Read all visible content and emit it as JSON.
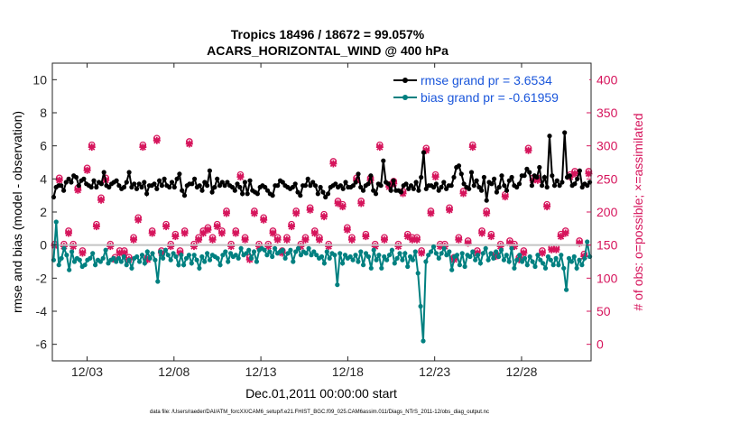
{
  "chart_data": {
    "type": "line",
    "title_line1": "Tropics 18496 / 18672 = 99.057%",
    "title_line2": "ACARS_HORIZONTAL_WIND @ 400 hPa",
    "xlabel": "Dec.01,2011 00:00:00 start",
    "ylabel_left": "rmse and bias (model - observation)",
    "ylabel_right": "# of obs: o=possible; ×=assimilated",
    "footnote": "data file: /Users/raeder/DAI/ATM_forcXX/CAM6_setup/f.e21.FHIST_BGC.f09_025.CAM6assim.011/Diags_NTrS_2011-12/obs_diag_output.nc",
    "xlim": [
      1,
      32
    ],
    "ylim_left": [
      -7,
      11
    ],
    "ylim_right": [
      -25,
      425
    ],
    "x_ticks": [
      3,
      8,
      13,
      18,
      23,
      28
    ],
    "x_tick_labels": [
      "12/03",
      "12/08",
      "12/13",
      "12/18",
      "12/23",
      "12/28"
    ],
    "y_left_ticks": [
      "-6",
      "-4",
      "-2",
      "0",
      "2",
      "4",
      "6",
      "8",
      "10"
    ],
    "y_right_ticks": [
      "0",
      "50",
      "100",
      "150",
      "200",
      "250",
      "300",
      "350",
      "400"
    ],
    "zero_line": 0,
    "series": [
      {
        "name": "rmse grand pr = 3.6534",
        "color": "#000000",
        "values": [
          2.9,
          3.5,
          3.6,
          3.6,
          3.3,
          3.8,
          4.0,
          3.8,
          4.2,
          4.1,
          3.6,
          3.9,
          4.0,
          3.7,
          3.6,
          3.5,
          3.9,
          3.5,
          3.8,
          3.7,
          4.4,
          3.6,
          3.5,
          3.7,
          3.8,
          3.9,
          3.6,
          3.4,
          3.5,
          3.8,
          4.4,
          3.5,
          3.7,
          3.4,
          3.7,
          3.5,
          3.8,
          3.1,
          3.6,
          3.6,
          3.7,
          3.4,
          3.9,
          3.6,
          4.0,
          3.6,
          3.5,
          3.8,
          3.5,
          4.0,
          4.3,
          3.3,
          3.0,
          3.6,
          3.7,
          3.7,
          4.0,
          3.5,
          3.6,
          3.3,
          3.8,
          3.6,
          4.5,
          3.2,
          3.5,
          4.0,
          3.6,
          3.8,
          3.6,
          3.8,
          3.6,
          3.5,
          3.3,
          3.7,
          3.5,
          3.1,
          3.8,
          3.1,
          3.9,
          3.3,
          3.2,
          3.1,
          3.5,
          3.6,
          3.5,
          3.3,
          3.1,
          3.0,
          3.6,
          3.6,
          3.9,
          3.8,
          3.6,
          3.5,
          3.4,
          3.5,
          3.7,
          3.2,
          3.0,
          3.6,
          3.6,
          4.0,
          3.6,
          3.8,
          3.6,
          3.1,
          3.5,
          3.2,
          2.9,
          3.1,
          3.5,
          3.6,
          3.7,
          3.5,
          3.6,
          3.4,
          3.8,
          3.5,
          3.5,
          3.6,
          3.8,
          4.3,
          3.5,
          3.3,
          3.6,
          3.7,
          4.2,
          3.3,
          3.1,
          3.7,
          3.6,
          5.1,
          3.8,
          3.7,
          3.3,
          3.9,
          3.3,
          3.3,
          3.2,
          3.6,
          3.7,
          3.4,
          3.6,
          3.4,
          3.8,
          3.3,
          4.1,
          5.6,
          3.4,
          3.6,
          3.6,
          3.5,
          3.7,
          3.3,
          3.5,
          3.8,
          3.4,
          3.6,
          3.6,
          4.1,
          4.7,
          4.8,
          4.3,
          3.7,
          3.5,
          3.4,
          4.4,
          3.6,
          3.9,
          3.5,
          3.3,
          4.1,
          2.7,
          3.8,
          3.7,
          4.0,
          3.2,
          3.5,
          4.2,
          3.6,
          3.3,
          3.9,
          4.1,
          3.6,
          3.5,
          3.7,
          4.2,
          4.2,
          4.6,
          4.4,
          3.6,
          4.2,
          4.1,
          4.7,
          3.6,
          4.1,
          3.5,
          6.6,
          4.2,
          3.6,
          3.9,
          3.6,
          3.8,
          6.8,
          4.1,
          4.2,
          3.6,
          3.7,
          4.0,
          4.5,
          3.5,
          3.7,
          3.6,
          3.8
        ]
      },
      {
        "name": "bias grand pr = -0.61959",
        "color": "#008080",
        "values": [
          -0.9,
          1.4,
          -1.2,
          -0.8,
          -0.2,
          -0.6,
          -1.5,
          -0.4,
          -1.0,
          -0.8,
          -0.9,
          -1.3,
          -1.2,
          -0.9,
          -0.8,
          -0.5,
          -1.2,
          -0.9,
          -1.0,
          -0.8,
          -0.3,
          -1.1,
          -0.9,
          -0.8,
          -1.0,
          -0.8,
          -1.0,
          -0.7,
          -1.2,
          -0.9,
          -1.4,
          -0.8,
          -0.7,
          -1.0,
          -0.6,
          -1.1,
          -0.4,
          -0.8,
          -0.5,
          -0.9,
          -2.2,
          -0.4,
          -0.8,
          -0.3,
          -0.6,
          -0.9,
          -0.5,
          -0.7,
          -1.2,
          -0.6,
          -1.2,
          -0.8,
          -0.6,
          -1.1,
          -0.6,
          -0.9,
          -1.4,
          -0.7,
          -1.0,
          -0.5,
          -0.9,
          -0.6,
          -0.7,
          -0.8,
          -1.2,
          -0.6,
          -0.4,
          -1.0,
          -0.5,
          -0.7,
          -0.6,
          -0.8,
          -0.2,
          -0.6,
          -0.5,
          -0.3,
          -0.8,
          -0.4,
          -1.0,
          -0.3,
          -0.2,
          -0.3,
          -0.6,
          -0.4,
          -0.7,
          -0.2,
          -0.5,
          -0.4,
          -0.3,
          -0.8,
          -0.5,
          -0.3,
          -1.0,
          -0.4,
          -0.2,
          -0.6,
          -0.4,
          -0.5,
          -0.2,
          -0.6,
          -0.4,
          -0.6,
          -0.8,
          -0.7,
          -1.1,
          -0.4,
          -0.8,
          -0.5,
          -0.6,
          -2.4,
          -0.5,
          -1.1,
          -0.6,
          -0.8,
          -0.7,
          -0.9,
          -0.6,
          -1.0,
          -0.4,
          -1.2,
          -0.5,
          -0.7,
          -1.4,
          -0.3,
          -0.9,
          -0.6,
          -1.4,
          -0.7,
          -0.9,
          -0.6,
          -0.3,
          -1.1,
          -0.8,
          -0.5,
          -0.9,
          -0.5,
          -1.3,
          -0.7,
          -0.9,
          -0.4,
          -1.7,
          -3.7,
          -5.8,
          -1.0,
          -0.6,
          -0.4,
          -0.1,
          -0.5,
          -0.8,
          -0.5,
          -0.2,
          -0.6,
          -0.4,
          -1.5,
          -0.7,
          -0.6,
          -1.2,
          -0.5,
          -1.3,
          -0.6,
          -0.7,
          -0.4,
          -0.9,
          -0.6,
          -1.1,
          -0.5,
          -0.2,
          -0.9,
          -0.5,
          -0.8,
          -0.4,
          -0.7,
          -0.3,
          -0.9,
          -0.6,
          -1.0,
          -0.2,
          -1.4,
          -0.9,
          -0.6,
          -1.0,
          -0.8,
          -1.2,
          -0.7,
          -1.0,
          -1.3,
          -0.6,
          -0.9,
          -1.1,
          -1.4,
          -0.7,
          -0.9,
          -1.2,
          -0.8,
          -1.2,
          -0.6,
          -1.4,
          -2.7,
          -0.8,
          -1.0,
          -0.7,
          -1.4,
          -0.9,
          -1.2,
          -0.8,
          0.2,
          -0.7
        ]
      }
    ],
    "obs_possible": [
      150,
      250,
      150,
      170,
      150,
      235,
      140,
      265,
      300,
      180,
      220,
      250,
      150,
      130,
      140,
      140,
      130,
      160,
      190,
      300,
      130,
      170,
      310,
      140,
      180,
      150,
      165,
      140,
      170,
      305,
      150,
      160,
      170,
      175,
      160,
      180,
      170,
      200,
      150,
      170,
      255,
      160,
      130,
      200,
      150,
      190,
      150,
      170,
      160,
      140,
      160,
      180,
      200,
      150,
      160,
      205,
      170,
      160,
      195,
      150,
      275,
      215,
      210,
      175,
      160,
      250,
      215,
      165,
      250,
      150,
      300,
      160,
      240,
      245,
      150,
      230,
      165,
      160,
      160,
      140,
      295,
      200,
      255,
      150,
      150,
      205,
      130,
      160,
      230,
      155,
      300,
      140,
      170,
      200,
      165,
      135,
      150,
      225,
      155,
      150,
      130,
      140,
      295,
      250,
      250,
      140,
      210,
      145,
      145,
      165,
      170,
      255,
      260,
      155,
      135,
      260
    ],
    "obs_assimilated": [
      149,
      248,
      148,
      168,
      148,
      233,
      138,
      263,
      298,
      178,
      218,
      248,
      148,
      128,
      138,
      138,
      128,
      158,
      188,
      298,
      128,
      168,
      308,
      138,
      178,
      148,
      163,
      138,
      168,
      303,
      148,
      158,
      168,
      173,
      158,
      178,
      168,
      198,
      148,
      168,
      253,
      158,
      128,
      198,
      148,
      188,
      148,
      168,
      158,
      138,
      158,
      178,
      198,
      148,
      158,
      203,
      168,
      158,
      193,
      148,
      273,
      213,
      208,
      173,
      158,
      248,
      213,
      163,
      248,
      148,
      298,
      158,
      238,
      243,
      148,
      228,
      163,
      158,
      158,
      138,
      293,
      198,
      253,
      148,
      148,
      203,
      128,
      158,
      228,
      153,
      298,
      138,
      168,
      198,
      163,
      133,
      148,
      223,
      153,
      148,
      128,
      138,
      293,
      248,
      248,
      138,
      208,
      143,
      143,
      163,
      168,
      253,
      258,
      153,
      133,
      258
    ]
  },
  "legend": {
    "rmse_label": "rmse grand pr = 3.6534",
    "bias_label": "bias grand pr = -0.61959",
    "text_color": "#1a56db"
  },
  "colors": {
    "rmse": "#000000",
    "bias": "#008080",
    "obs": "#d6155c",
    "zero_line": "#c4c4c4"
  }
}
